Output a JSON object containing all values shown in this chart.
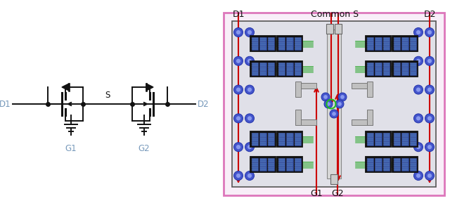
{
  "bg_color": "#ffffff",
  "left_panel": {
    "D1_label": "D1",
    "D2_label": "D2",
    "G1_label": "G1",
    "G2_label": "G2",
    "S_label": "S",
    "label_color": "#7799bb",
    "line_color": "#111111"
  },
  "right_panel": {
    "outer_border_color": "#dd77bb",
    "inner_border_color": "#555555",
    "outer_bg": "#f8eef8",
    "inner_bg": "#e0e0e8",
    "chip_outer_color": "#111111",
    "chip_inner_color": "#1a1a6e",
    "chip_cell_color": "#3355aa",
    "chip_stripe_color": "#7799cc",
    "via_color": "#4455cc",
    "via_inner": "#8899dd",
    "wire_color": "#33aa33",
    "arrow_color": "#cc0000",
    "center_bus_color": "#cccccc",
    "routing_color": "#aaaaaa",
    "G1_label": "G1",
    "G2_label": "G2",
    "D1_label": "D1",
    "D2_label": "D2",
    "CS_label": "Common S"
  }
}
